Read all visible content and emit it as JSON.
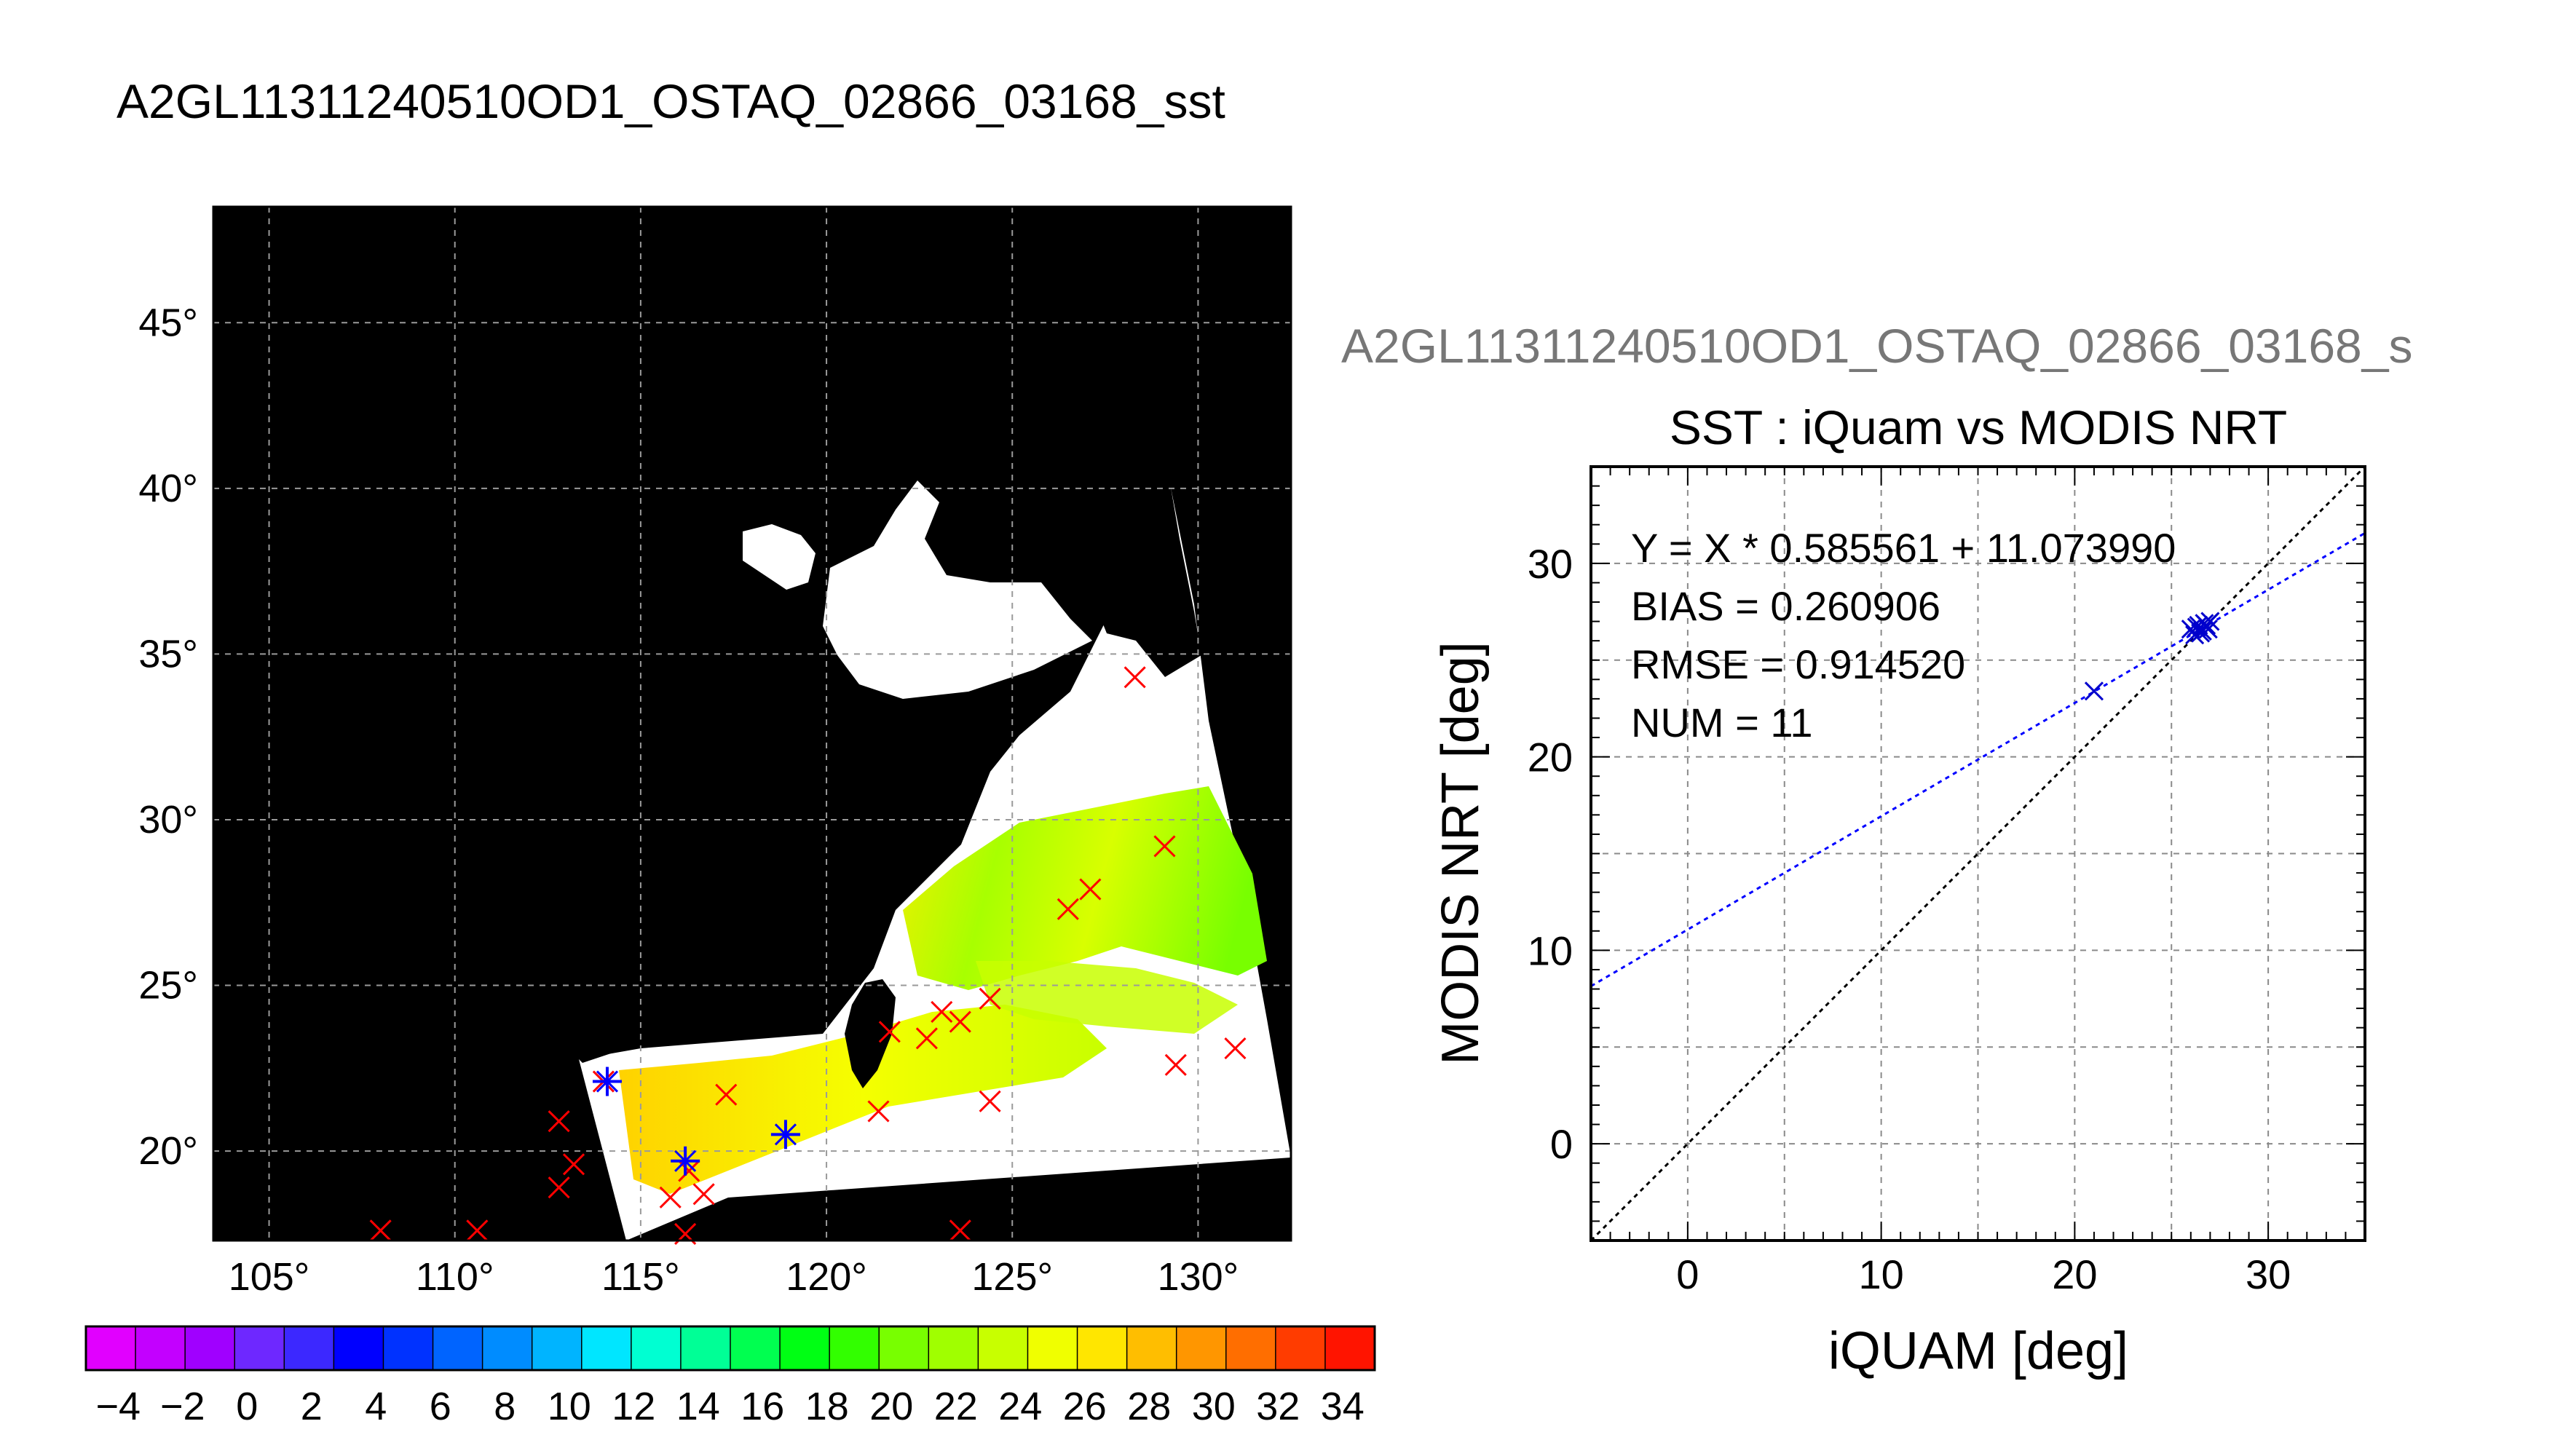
{
  "figure_title": "A2GL11311240510OD1_OSTAQ_02866_03168_sst",
  "map": {
    "lon_ticks": [
      "105°",
      "110°",
      "115°",
      "120°",
      "125°",
      "130°"
    ],
    "lat_ticks": [
      "45°",
      "40°",
      "35°",
      "30°",
      "25°",
      "20°"
    ],
    "colorbar": {
      "tick_labels": [
        "−4",
        "−2",
        "0",
        "2",
        "4",
        "6",
        "8",
        "10",
        "12",
        "14",
        "16",
        "18",
        "20",
        "22",
        "24",
        "26",
        "28",
        "30",
        "32",
        "34"
      ],
      "colors": [
        "#e100ff",
        "#c300ff",
        "#a000ff",
        "#6e28ff",
        "#3c28ff",
        "#0000ff",
        "#0032ff",
        "#0064ff",
        "#008cff",
        "#00b4ff",
        "#00e6ff",
        "#00ffd2",
        "#00ff96",
        "#00ff50",
        "#00ff14",
        "#32ff00",
        "#78ff00",
        "#a0ff00",
        "#c8ff00",
        "#f0ff00",
        "#ffe600",
        "#ffbe00",
        "#ff9600",
        "#ff6e00",
        "#ff3c00",
        "#ff1400"
      ],
      "range": [
        -5,
        35
      ]
    },
    "matchups": [
      {
        "lon": 128.3,
        "lat": 34.3
      },
      {
        "lon": 129.1,
        "lat": 29.2
      },
      {
        "lon": 127.1,
        "lat": 27.9
      },
      {
        "lon": 126.5,
        "lat": 27.3
      },
      {
        "lon": 124.4,
        "lat": 24.6
      },
      {
        "lon": 123.6,
        "lat": 23.9
      },
      {
        "lon": 123.1,
        "lat": 24.2
      },
      {
        "lon": 122.7,
        "lat": 23.4
      },
      {
        "lon": 121.7,
        "lat": 23.6
      },
      {
        "lon": 121.4,
        "lat": 21.2
      },
      {
        "lon": 124.4,
        "lat": 21.5
      },
      {
        "lon": 129.4,
        "lat": 22.6
      },
      {
        "lon": 131.0,
        "lat": 23.1
      },
      {
        "lon": 117.3,
        "lat": 21.7
      },
      {
        "lon": 114.0,
        "lat": 22.1
      },
      {
        "lon": 112.8,
        "lat": 20.9
      },
      {
        "lon": 113.2,
        "lat": 19.6
      },
      {
        "lon": 112.8,
        "lat": 18.9
      },
      {
        "lon": 116.3,
        "lat": 19.4
      },
      {
        "lon": 115.8,
        "lat": 18.6
      },
      {
        "lon": 116.7,
        "lat": 18.7
      },
      {
        "lon": 116.2,
        "lat": 17.5
      },
      {
        "lon": 108.0,
        "lat": 17.6
      },
      {
        "lon": 110.6,
        "lat": 17.6
      },
      {
        "lon": 123.6,
        "lat": 17.6
      }
    ],
    "matchups_used": [
      {
        "lon": 114.1,
        "lat": 22.1
      },
      {
        "lon": 116.2,
        "lat": 19.7
      },
      {
        "lon": 118.9,
        "lat": 20.5
      }
    ]
  },
  "chart_data": {
    "type": "scatter",
    "suptitle": "A2GL11311240510OD1_OSTAQ_02866_03168_s",
    "title": "SST : iQuam vs MODIS NRT",
    "xlabel": "iQUAM [deg]",
    "ylabel": "MODIS NRT [deg]",
    "xlim": [
      -5,
      35
    ],
    "ylim": [
      -5,
      35
    ],
    "xticks": [
      0,
      10,
      20,
      30
    ],
    "yticks": [
      0,
      10,
      20,
      30
    ],
    "grid": true,
    "stats": [
      "Y = X * 0.585561 + 11.073990",
      "BIAS = 0.260906",
      "RMSE = 0.914520",
      "NUM = 11"
    ],
    "fit": {
      "slope": 0.585561,
      "intercept": 11.07399
    },
    "points": [
      {
        "x": 21.0,
        "y": 23.4
      },
      {
        "x": 26.0,
        "y": 26.6
      },
      {
        "x": 26.2,
        "y": 26.3
      },
      {
        "x": 26.4,
        "y": 26.8
      },
      {
        "x": 26.6,
        "y": 26.5
      },
      {
        "x": 26.7,
        "y": 26.9
      },
      {
        "x": 26.9,
        "y": 26.6
      },
      {
        "x": 27.0,
        "y": 27.0
      },
      {
        "x": 26.5,
        "y": 26.4
      },
      {
        "x": 26.8,
        "y": 26.8
      },
      {
        "x": 26.3,
        "y": 26.7
      }
    ],
    "colors": {
      "points": "#0000cc",
      "fit": "#0000ff",
      "identity": "#000000"
    }
  }
}
